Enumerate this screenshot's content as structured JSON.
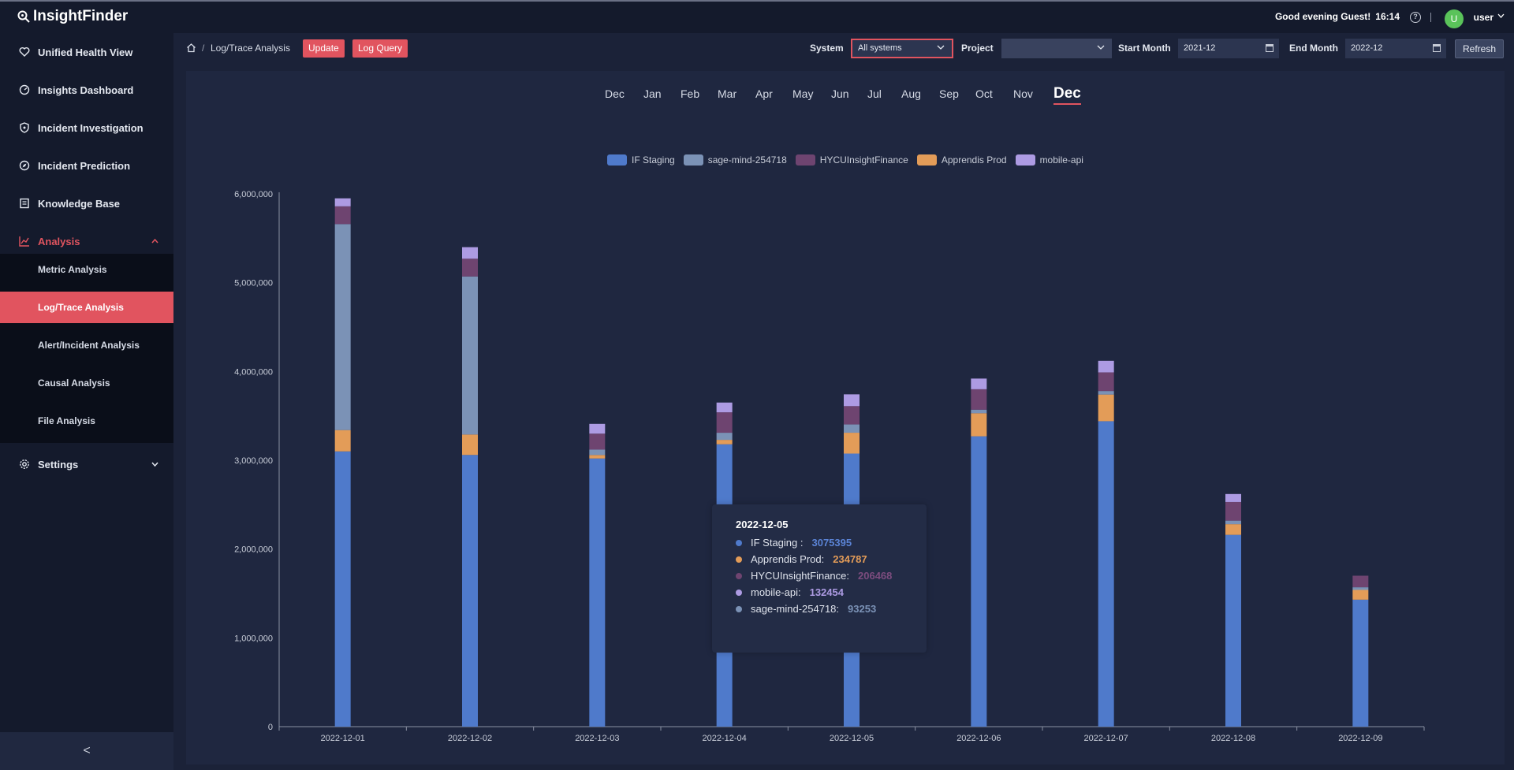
{
  "app": {
    "name": "InsightFinder"
  },
  "header": {
    "greeting": "Good evening Guest!",
    "time": "16:14",
    "avatar_letter": "U",
    "user": "user"
  },
  "sidebar": {
    "items": [
      {
        "label": "Unified Health View",
        "icon": "heart-icon"
      },
      {
        "label": "Insights Dashboard",
        "icon": "dashboard-icon"
      },
      {
        "label": "Incident Investigation",
        "icon": "shield-icon"
      },
      {
        "label": "Incident Prediction",
        "icon": "compass-icon"
      },
      {
        "label": "Knowledge Base",
        "icon": "book-icon"
      },
      {
        "label": "Analysis",
        "icon": "chart-icon"
      },
      {
        "label": "Settings",
        "icon": "gear-icon"
      }
    ],
    "analysis_sub": [
      "Metric Analysis",
      "Log/Trace Analysis",
      "Alert/Incident Analysis",
      "Causal Analysis",
      "File Analysis"
    ],
    "collapse_glyph": "<"
  },
  "toolbar": {
    "breadcrumb_sep": "/",
    "page": "Log/Trace Analysis",
    "update_label": "Update",
    "log_query_label": "Log Query",
    "system_label": "System",
    "system_value": "All systems",
    "project_label": "Project",
    "project_value": "",
    "start_label": "Start Month",
    "start_value": "2021-12",
    "end_label": "End Month",
    "end_value": "2022-12",
    "refresh_label": "Refresh"
  },
  "months": [
    "Dec",
    "Jan",
    "Feb",
    "Mar",
    "Apr",
    "May",
    "Jun",
    "Jul",
    "Aug",
    "Sep",
    "Oct",
    "Nov",
    "Dec"
  ],
  "active_month_index": 12,
  "colors": {
    "IF Staging": "#4f7acb",
    "sage-mind-254718": "#7b92b6",
    "HYCUInsightFinance": "#6e4470",
    "Apprendis Prod": "#e39c58",
    "mobile-api": "#ad9be3",
    "accent": "#e1545f"
  },
  "chart_data": {
    "type": "bar",
    "stacked": true,
    "categories": [
      "2022-12-01",
      "2022-12-02",
      "2022-12-03",
      "2022-12-04",
      "2022-12-05",
      "2022-12-06",
      "2022-12-07",
      "2022-12-08",
      "2022-12-09"
    ],
    "ylim": [
      0,
      6000000
    ],
    "yticks": [
      0,
      1000000,
      2000000,
      3000000,
      4000000,
      5000000,
      6000000
    ],
    "ytick_labels": [
      "0",
      "1,000,000",
      "2,000,000",
      "3,000,000",
      "4,000,000",
      "5,000,000",
      "6,000,000"
    ],
    "legend": [
      "IF Staging",
      "sage-mind-254718",
      "HYCUInsightFinance",
      "Apprendis Prod",
      "mobile-api"
    ],
    "stack_order": [
      "IF Staging",
      "Apprendis Prod",
      "sage-mind-254718",
      "HYCUInsightFinance",
      "mobile-api"
    ],
    "series": [
      {
        "name": "IF Staging",
        "values": [
          3100000,
          3060000,
          3020000,
          3180000,
          3075395,
          3270000,
          3440000,
          2160000,
          1430000
        ]
      },
      {
        "name": "Apprendis Prod",
        "values": [
          240000,
          230000,
          40000,
          50000,
          234787,
          260000,
          300000,
          120000,
          110000
        ]
      },
      {
        "name": "sage-mind-254718",
        "values": [
          2320000,
          1780000,
          60000,
          80000,
          93253,
          40000,
          40000,
          40000,
          30000
        ]
      },
      {
        "name": "HYCUInsightFinance",
        "values": [
          200000,
          200000,
          180000,
          230000,
          206468,
          230000,
          210000,
          210000,
          130000
        ]
      },
      {
        "name": "mobile-api",
        "values": [
          90000,
          130000,
          110000,
          110000,
          132454,
          120000,
          130000,
          90000,
          0
        ]
      }
    ]
  },
  "tooltip": {
    "title": "2022-12-05",
    "rows": [
      {
        "label": "IF Staging :",
        "value": "3075395",
        "color": "#4f7acb",
        "value_color": "#5b84d6"
      },
      {
        "label": "Apprendis Prod:",
        "value": "234787",
        "color": "#e39c58",
        "value_color": "#e39c58"
      },
      {
        "label": "HYCUInsightFinance:",
        "value": "206468",
        "color": "#6e4470",
        "value_color": "#7c4c7e"
      },
      {
        "label": "mobile-api:",
        "value": "132454",
        "color": "#ad9be3",
        "value_color": "#ad9be3"
      },
      {
        "label": "sage-mind-254718:",
        "value": "93253",
        "color": "#7b92b6",
        "value_color": "#7b92b6"
      }
    ]
  }
}
